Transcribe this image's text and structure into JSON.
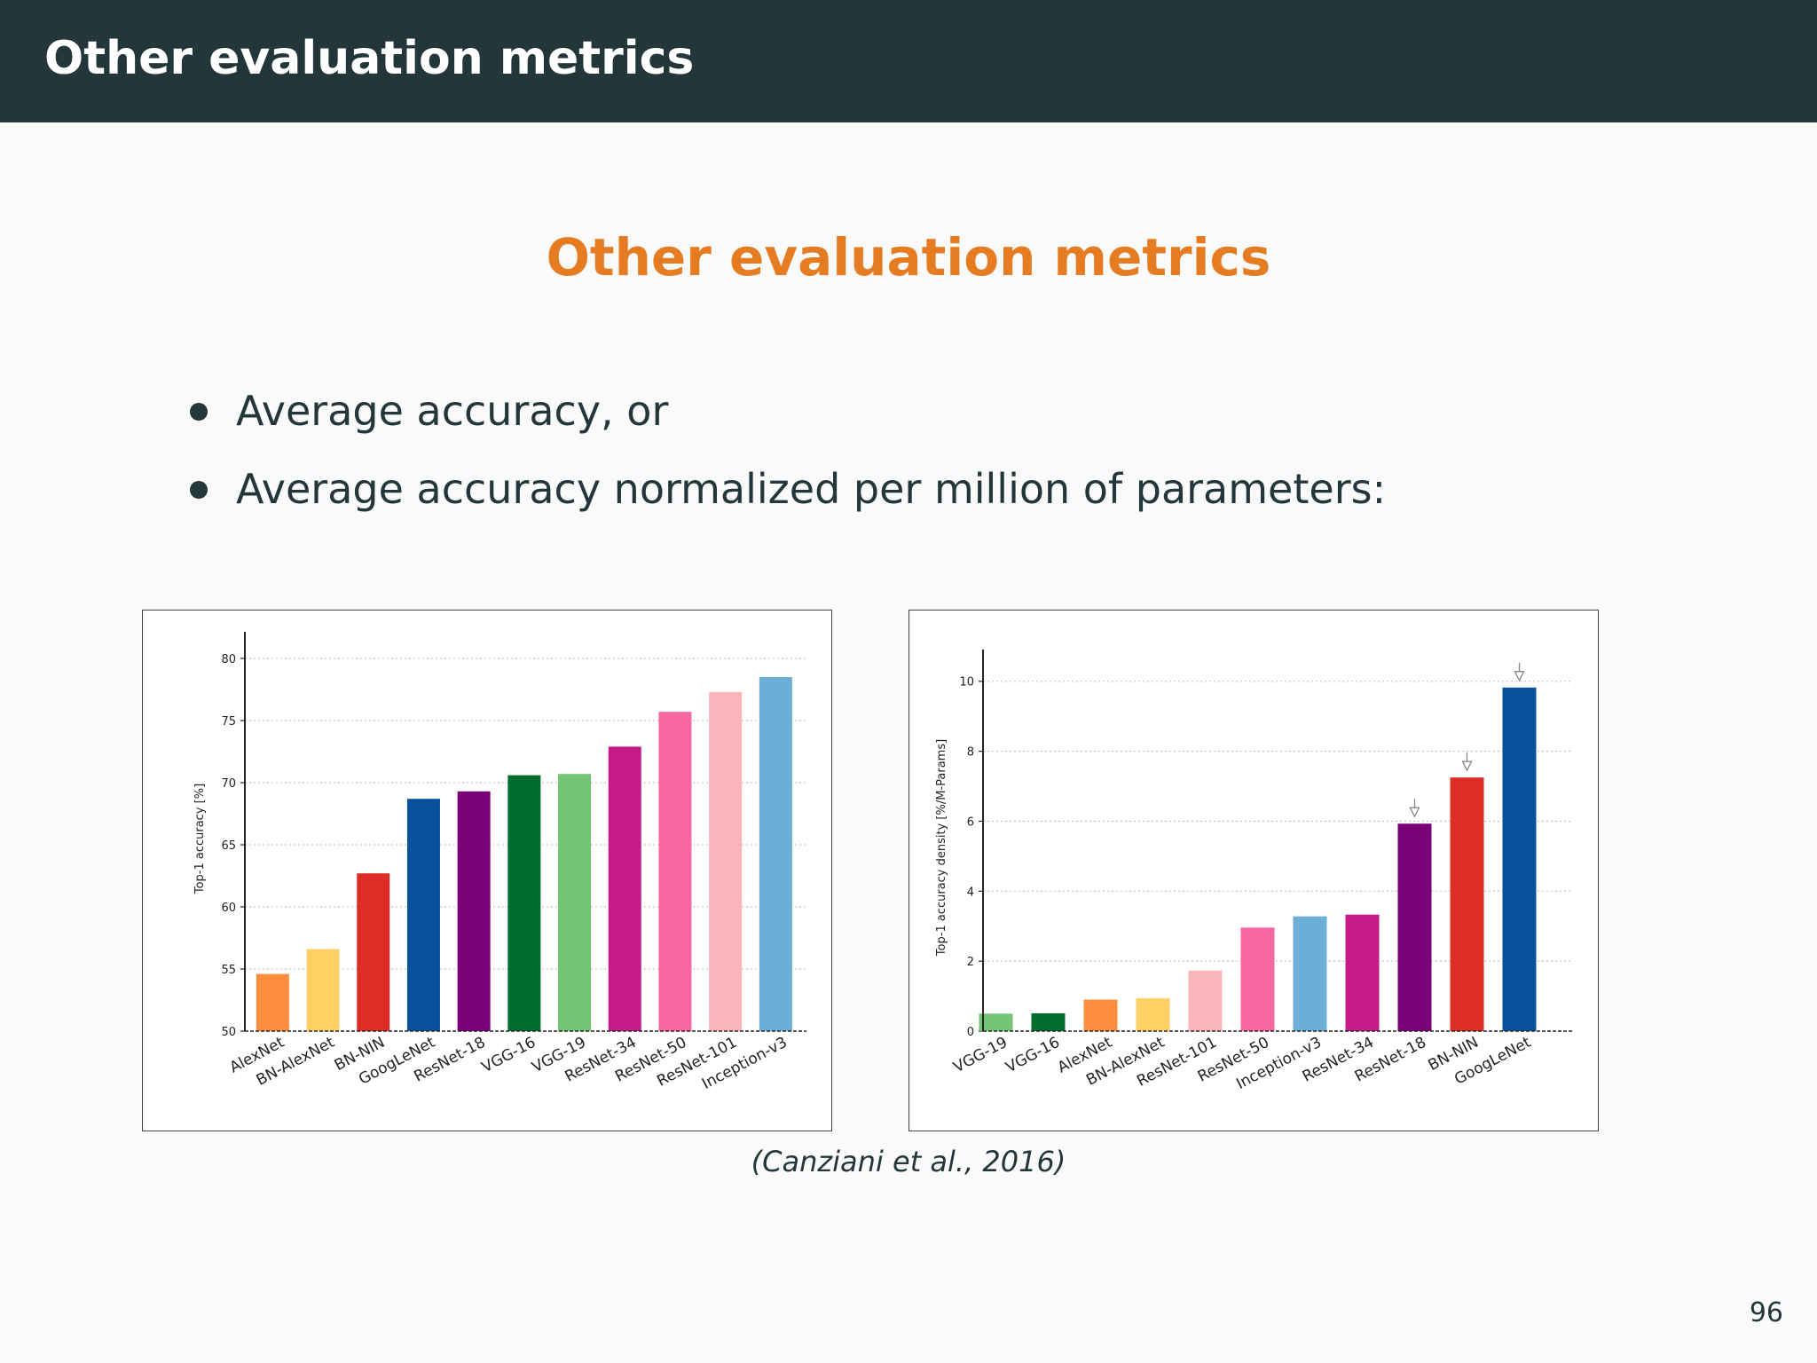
{
  "header": {
    "title": "Other evaluation metrics"
  },
  "slide": {
    "title": "Other evaluation metrics",
    "bullets": [
      "Average accuracy, or",
      "Average accuracy normalized per million of parameters:"
    ],
    "citation": "(Canziani et al., 2016)",
    "page_number": "96"
  },
  "colors": {
    "header_bg": "#23373b",
    "title_accent": "#e57c22",
    "text": "#23373b"
  },
  "chart_data": [
    {
      "type": "bar",
      "ylabel": "Top-1 accuracy [%]",
      "ylim": [
        50,
        81
      ],
      "yticks": [
        50,
        55,
        60,
        65,
        70,
        75,
        80
      ],
      "grid": true,
      "categories": [
        "AlexNet",
        "BN-AlexNet",
        "BN-NIN",
        "GoogLeNet",
        "ResNet-18",
        "VGG-16",
        "VGG-19",
        "ResNet-34",
        "ResNet-50",
        "ResNet-101",
        "Inception-v3"
      ],
      "values": [
        54.6,
        56.6,
        62.7,
        68.7,
        69.3,
        70.6,
        70.7,
        72.9,
        75.7,
        77.3,
        78.5
      ],
      "colors": [
        "#fd8d3c",
        "#fed165",
        "#de2d26",
        "#08519c",
        "#7a0177",
        "#006d2c",
        "#74c476",
        "#c51b8a",
        "#f768a1",
        "#fbb4b9",
        "#6baed6"
      ]
    },
    {
      "type": "bar",
      "ylabel": "Top-1 accuracy density [%/M-Params]",
      "ylim": [
        0,
        10.5
      ],
      "yticks": [
        0,
        2,
        4,
        6,
        8,
        10
      ],
      "grid": true,
      "categories": [
        "VGG-19",
        "VGG-16",
        "AlexNet",
        "BN-AlexNet",
        "ResNet-101",
        "ResNet-50",
        "Inception-v3",
        "ResNet-34",
        "ResNet-18",
        "BN-NIN",
        "GoogLeNet"
      ],
      "values": [
        0.5,
        0.51,
        0.9,
        0.94,
        1.73,
        2.96,
        3.28,
        3.33,
        5.93,
        7.25,
        9.82
      ],
      "colors": [
        "#74c476",
        "#006d2c",
        "#fd8d3c",
        "#fed165",
        "#fbb4b9",
        "#f768a1",
        "#6baed6",
        "#c51b8a",
        "#7a0177",
        "#de2d26",
        "#08519c"
      ],
      "highlighted": [
        "ResNet-18",
        "BN-NIN",
        "GoogLeNet"
      ]
    }
  ]
}
